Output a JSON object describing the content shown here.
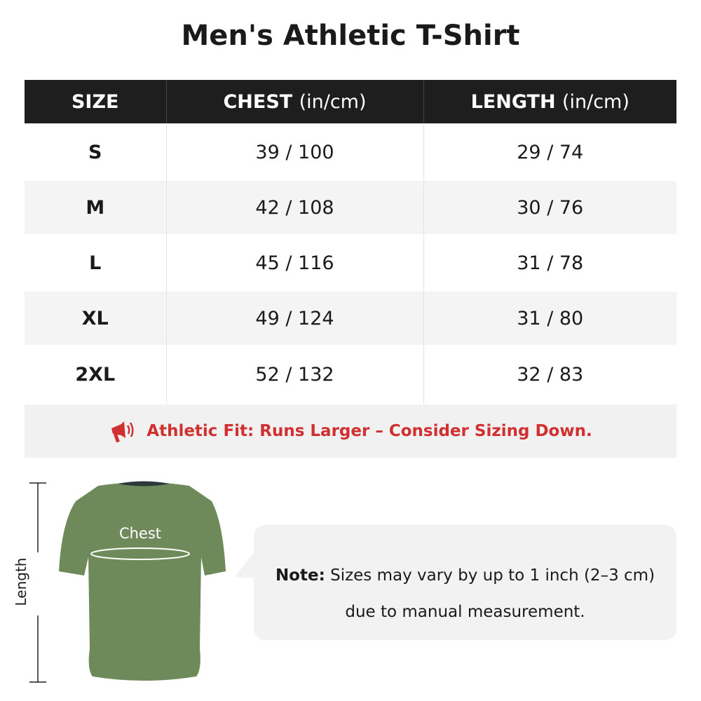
{
  "title": "Men's Athletic T-Shirt",
  "table": {
    "headers": [
      {
        "label": "SIZE",
        "unit": ""
      },
      {
        "label": "CHEST",
        "unit": "(in/cm)"
      },
      {
        "label": "LENGTH",
        "unit": "(in/cm)"
      }
    ],
    "rows": [
      {
        "size": "S",
        "chest": "39 / 100",
        "length": "29 / 74"
      },
      {
        "size": "M",
        "chest": "42 / 108",
        "length": "30 / 76"
      },
      {
        "size": "L",
        "chest": "45 / 116",
        "length": "31 / 78"
      },
      {
        "size": "XL",
        "chest": "49 / 124",
        "length": "31 / 80"
      },
      {
        "size": "2XL",
        "chest": "52 / 132",
        "length": "32 / 83"
      }
    ]
  },
  "notice": {
    "icon": "megaphone-icon",
    "text": "Athletic Fit: Runs Larger – Consider Sizing Down.",
    "color": "#d0302f"
  },
  "diagram": {
    "length_label": "Length",
    "chest_label": "Chest",
    "shirt_color": "#6f8a5a"
  },
  "note": {
    "bold": "Note:",
    "line1": "Sizes may vary by up to 1 inch (2–3 cm)",
    "line2": "due to manual measurement."
  }
}
